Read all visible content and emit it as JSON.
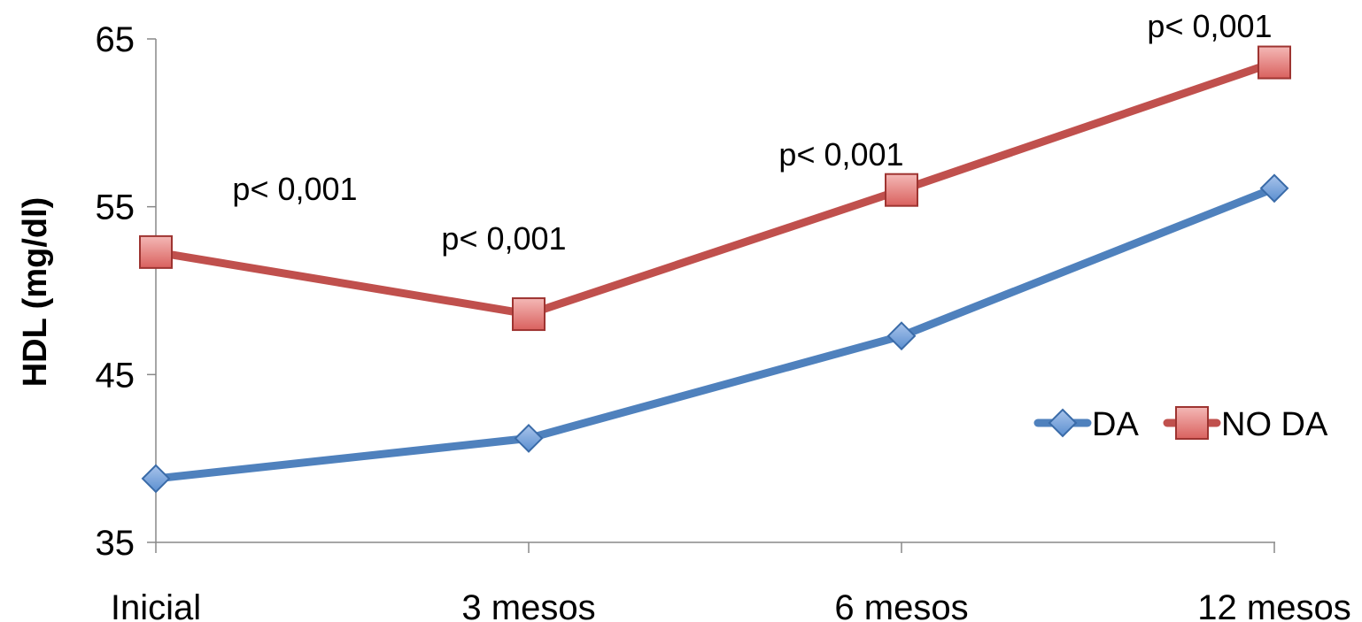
{
  "chart_data": {
    "type": "line",
    "categories": [
      "Inicial",
      "3 mesos",
      "6 mesos",
      "12 mesos"
    ],
    "series": [
      {
        "name": "DA",
        "values": [
          38.8,
          41.2,
          47.3,
          56.1
        ],
        "color": "#4F81BD",
        "marker": "diamond"
      },
      {
        "name": "NO DA",
        "values": [
          52.3,
          48.6,
          56.0,
          63.6
        ],
        "color": "#C0504D",
        "marker": "square"
      }
    ],
    "annotations": [
      "p< 0,001",
      "p< 0,001",
      "p< 0,001",
      "p< 0,001"
    ],
    "ylabel": "HDL (mg/dl)",
    "xlabel": "",
    "ylim": [
      35,
      65
    ],
    "yticks": [
      35,
      45,
      55,
      65
    ],
    "grid": false,
    "legend_position": "right"
  }
}
